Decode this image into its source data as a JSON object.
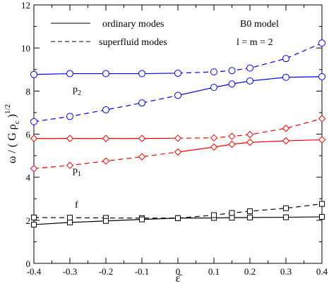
{
  "chart_data": {
    "type": "line",
    "xlabel": "ε̄",
    "ylabel": {
      "text": "ω / ( G ρ",
      "sub": "c",
      "close": " )",
      "sup": "1/2"
    },
    "xlim": [
      -0.4,
      0.4
    ],
    "ylim": [
      0,
      12
    ],
    "xticks": [
      -0.4,
      -0.3,
      -0.2,
      -0.1,
      0,
      0.1,
      0.2,
      0.3,
      0.4
    ],
    "xtick_labels": [
      "-0.4",
      "-0.3",
      "-0.2",
      "-0.1",
      "0",
      "0.1",
      "0.2",
      "0.3",
      "0.4"
    ],
    "yticks": [
      0,
      2,
      4,
      6,
      8,
      10,
      12
    ],
    "ytick_labels": [
      "0",
      "2",
      "4",
      "6",
      "8",
      "10",
      "12"
    ],
    "grid": false,
    "legend": {
      "placement": "top-left",
      "entries": [
        {
          "label": "ordinary   modes",
          "style": "solid"
        },
        {
          "label": "superfluid  modes",
          "style": "dashed"
        }
      ]
    },
    "annotations": {
      "model": "B0 model",
      "lm": "l = m = 2",
      "p2_base": "p",
      "p2_sub": "2",
      "p1_base": "p",
      "p1_sub": "1",
      "f": "f"
    },
    "x": [
      -0.4,
      -0.3,
      -0.2,
      -0.1,
      0,
      0.1,
      0.15,
      0.2,
      0.3,
      0.4
    ],
    "series": [
      {
        "group": "p2",
        "kind": "ordinary",
        "color": "#0000ff",
        "marker": "circle",
        "values": [
          8.77,
          8.81,
          8.81,
          8.81,
          8.83,
          8.89,
          8.95,
          9.07,
          9.51,
          10.23
        ],
        "dash_from_x": 0
      },
      {
        "group": "p2",
        "kind": "superfluid",
        "color": "#0000ff",
        "marker": "circle",
        "values": [
          6.58,
          6.82,
          7.13,
          7.45,
          7.8,
          8.17,
          8.33,
          8.47,
          8.64,
          8.67
        ],
        "dash_until_x": 0
      },
      {
        "group": "p1",
        "kind": "ordinary",
        "color": "#ff0000",
        "marker": "diamond",
        "values": [
          5.8,
          5.8,
          5.8,
          5.8,
          5.81,
          5.83,
          5.9,
          5.98,
          6.27,
          6.72
        ],
        "dash_from_x": 0
      },
      {
        "group": "p1",
        "kind": "superfluid",
        "color": "#ff0000",
        "marker": "diamond",
        "values": [
          4.4,
          4.55,
          4.75,
          4.95,
          5.17,
          5.4,
          5.53,
          5.62,
          5.69,
          5.74
        ],
        "dash_until_x": 0
      },
      {
        "group": "f",
        "kind": "ordinary",
        "color": "#000000",
        "marker": "square",
        "values": [
          2.13,
          2.12,
          2.11,
          2.1,
          2.1,
          2.11,
          2.12,
          2.13,
          2.14,
          2.16
        ],
        "dash_until_x": 0
      },
      {
        "group": "f",
        "kind": "superfluid",
        "color": "#000000",
        "marker": "square",
        "values": [
          1.8,
          1.9,
          1.97,
          2.04,
          2.1,
          2.24,
          2.34,
          2.42,
          2.56,
          2.76
        ],
        "dash_from_x": 0
      }
    ]
  }
}
